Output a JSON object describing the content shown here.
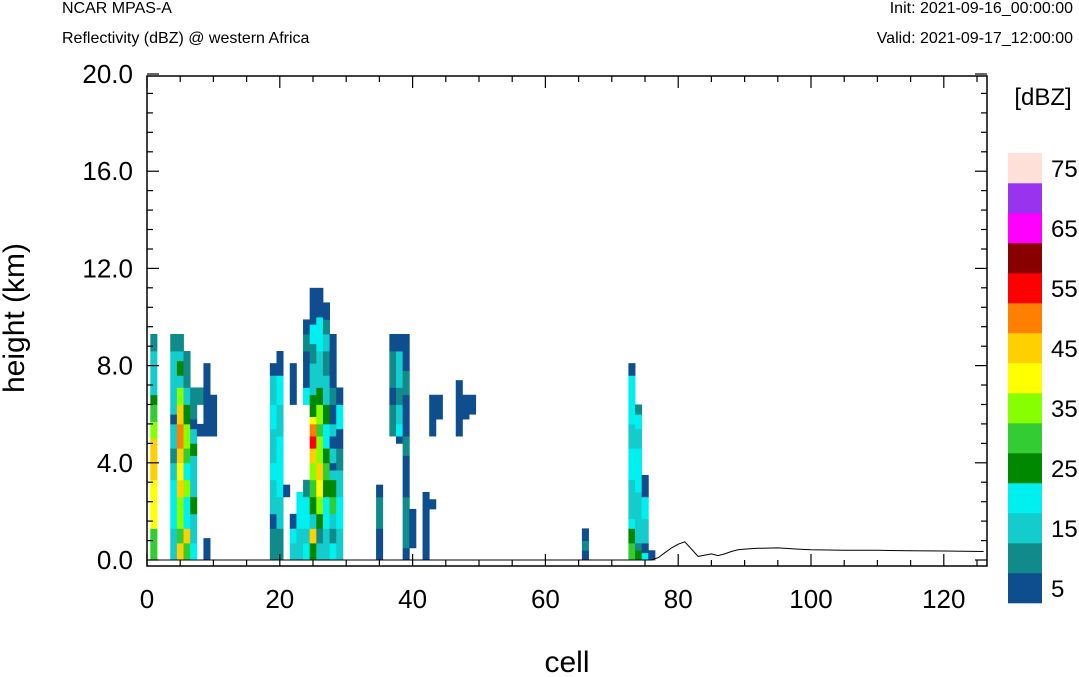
{
  "header": {
    "model": "NCAR MPAS-A",
    "subtitle": "Reflectivity (dBZ) @ western Africa",
    "init": "Init: 2021-09-16_00:00:00",
    "valid": "Valid: 2021-09-17_12:00:00"
  },
  "chart_data": {
    "type": "heatmap",
    "title": "Reflectivity (dBZ) @ western Africa",
    "xlabel": "cell",
    "ylabel": "height (km)",
    "xlim": [
      0,
      126
    ],
    "ylim": [
      0,
      20
    ],
    "x_ticks": [
      0,
      20,
      40,
      60,
      80,
      100,
      120
    ],
    "x_tick_labels": [
      "0",
      "20",
      "40",
      "60",
      "80",
      "100",
      "120"
    ],
    "y_ticks": [
      0,
      4,
      8,
      12,
      16,
      20
    ],
    "y_tick_labels": [
      "0.0",
      "4.0",
      "8.0",
      "12.0",
      "16.0",
      "20.0"
    ],
    "grid": false,
    "colorbar": {
      "unit": "[dBZ]",
      "levels": [
        5,
        10,
        15,
        20,
        25,
        30,
        35,
        40,
        45,
        50,
        55,
        60,
        65,
        70,
        75
      ],
      "labels": [
        "5",
        "15",
        "25",
        "35",
        "45",
        "55",
        "65",
        "75"
      ],
      "colors": [
        "#0e4d8e",
        "#108a8a",
        "#14cccc",
        "#00f0f0",
        "#008800",
        "#33cc33",
        "#88ff00",
        "#ffff00",
        "#ffd000",
        "#ff8000",
        "#ff0000",
        "#880000",
        "#ff00ff",
        "#9933ee",
        "#ffe0d8"
      ]
    },
    "columns": [
      {
        "x": 1,
        "cells": [
          [
            0.0,
            1.3,
            30
          ],
          [
            1.3,
            3.3,
            40
          ],
          [
            3.3,
            5.0,
            45
          ],
          [
            5.0,
            5.7,
            35
          ],
          [
            5.7,
            6.4,
            30
          ],
          [
            6.4,
            6.8,
            25
          ],
          [
            6.8,
            8.6,
            15
          ],
          [
            8.6,
            9.3,
            10
          ]
        ]
      },
      {
        "x": 4,
        "cells": [
          [
            0.0,
            1.3,
            15
          ],
          [
            1.3,
            3.3,
            20
          ],
          [
            3.3,
            4.0,
            15
          ],
          [
            4.0,
            4.6,
            10
          ],
          [
            4.6,
            5.6,
            15
          ],
          [
            5.6,
            6.0,
            5
          ],
          [
            6.0,
            8.6,
            15
          ],
          [
            8.6,
            9.3,
            10
          ]
        ]
      },
      {
        "x": 5,
        "cells": [
          [
            0.0,
            0.7,
            45
          ],
          [
            0.7,
            1.3,
            30
          ],
          [
            1.3,
            2.6,
            35
          ],
          [
            2.6,
            3.3,
            45
          ],
          [
            3.3,
            4.0,
            40
          ],
          [
            4.0,
            4.6,
            45
          ],
          [
            4.6,
            5.6,
            50
          ],
          [
            5.6,
            6.4,
            45
          ],
          [
            6.4,
            7.1,
            35
          ],
          [
            7.1,
            7.6,
            15
          ],
          [
            7.6,
            8.2,
            25
          ],
          [
            8.2,
            8.6,
            15
          ],
          [
            8.6,
            9.3,
            10
          ]
        ]
      },
      {
        "x": 6,
        "cells": [
          [
            0.0,
            0.7,
            30
          ],
          [
            0.7,
            1.3,
            45
          ],
          [
            1.3,
            2.6,
            20
          ],
          [
            2.6,
            3.3,
            35
          ],
          [
            3.3,
            4.0,
            20
          ],
          [
            4.0,
            4.6,
            30
          ],
          [
            4.6,
            5.6,
            35
          ],
          [
            5.6,
            6.4,
            25
          ],
          [
            6.4,
            7.1,
            15
          ],
          [
            7.1,
            8.6,
            10
          ]
        ]
      },
      {
        "x": 7,
        "cells": [
          [
            0.0,
            0.7,
            20
          ],
          [
            0.7,
            1.9,
            15
          ],
          [
            1.9,
            2.6,
            25
          ],
          [
            2.6,
            4.3,
            15
          ],
          [
            4.3,
            4.8,
            25
          ],
          [
            4.8,
            5.4,
            15
          ],
          [
            5.4,
            5.8,
            5
          ],
          [
            5.8,
            7.1,
            10
          ]
        ]
      },
      {
        "x": 8,
        "cells": [
          [
            5.1,
            5.6,
            5
          ],
          [
            6.4,
            7.1,
            10
          ]
        ]
      },
      {
        "x": 9,
        "cells": [
          [
            0.0,
            0.9,
            5
          ],
          [
            5.1,
            8.1,
            5
          ]
        ]
      },
      {
        "x": 10,
        "cells": [
          [
            5.1,
            6.8,
            5
          ]
        ]
      },
      {
        "x": 19,
        "cells": [
          [
            0.0,
            1.3,
            10
          ],
          [
            1.3,
            1.9,
            5
          ],
          [
            1.9,
            3.3,
            15
          ],
          [
            3.3,
            4.0,
            20
          ],
          [
            4.0,
            5.4,
            15
          ],
          [
            5.4,
            6.4,
            20
          ],
          [
            6.4,
            7.6,
            15
          ],
          [
            7.6,
            8.1,
            5
          ]
        ]
      },
      {
        "x": 20,
        "cells": [
          [
            0.0,
            1.3,
            10
          ],
          [
            1.3,
            2.6,
            15
          ],
          [
            2.6,
            5.1,
            20
          ],
          [
            5.1,
            6.4,
            15
          ],
          [
            6.4,
            7.6,
            20
          ],
          [
            7.6,
            8.6,
            5
          ]
        ]
      },
      {
        "x": 21,
        "cells": [
          [
            2.6,
            3.1,
            5
          ]
        ]
      },
      {
        "x": 22,
        "cells": [
          [
            0.0,
            0.7,
            15
          ],
          [
            0.7,
            1.3,
            20
          ],
          [
            1.3,
            1.9,
            5
          ],
          [
            6.4,
            8.1,
            5
          ]
        ]
      },
      {
        "x": 23,
        "cells": [
          [
            0.0,
            1.3,
            15
          ],
          [
            1.3,
            2.8,
            20
          ]
        ]
      },
      {
        "x": 24,
        "cells": [
          [
            0.0,
            0.7,
            20
          ],
          [
            0.7,
            1.3,
            15
          ],
          [
            1.3,
            2.6,
            20
          ],
          [
            2.6,
            3.3,
            10
          ],
          [
            6.4,
            7.1,
            20
          ],
          [
            7.1,
            8.6,
            5
          ],
          [
            8.6,
            9.3,
            10
          ],
          [
            9.3,
            9.9,
            5
          ]
        ]
      },
      {
        "x": 25,
        "cells": [
          [
            0.0,
            0.7,
            25
          ],
          [
            0.7,
            1.3,
            45
          ],
          [
            1.3,
            1.9,
            15
          ],
          [
            1.9,
            2.6,
            25
          ],
          [
            2.6,
            3.3,
            30
          ],
          [
            3.3,
            4.0,
            35
          ],
          [
            4.0,
            4.6,
            45
          ],
          [
            4.6,
            5.1,
            55
          ],
          [
            5.1,
            5.6,
            50
          ],
          [
            5.6,
            5.9,
            40
          ],
          [
            5.9,
            6.8,
            25
          ],
          [
            6.8,
            8.1,
            15
          ],
          [
            8.1,
            8.9,
            10
          ],
          [
            8.9,
            9.7,
            20
          ],
          [
            9.7,
            11.2,
            5
          ]
        ]
      },
      {
        "x": 26,
        "cells": [
          [
            0.0,
            0.7,
            15
          ],
          [
            0.7,
            1.3,
            10
          ],
          [
            1.3,
            1.9,
            25
          ],
          [
            1.9,
            2.6,
            35
          ],
          [
            2.6,
            3.3,
            40
          ],
          [
            3.3,
            4.0,
            45
          ],
          [
            4.0,
            5.1,
            35
          ],
          [
            5.1,
            5.6,
            30
          ],
          [
            5.6,
            6.4,
            35
          ],
          [
            6.4,
            7.1,
            25
          ],
          [
            7.1,
            8.6,
            15
          ],
          [
            8.6,
            10.0,
            20
          ],
          [
            10.0,
            11.2,
            5
          ]
        ]
      },
      {
        "x": 27,
        "cells": [
          [
            0.0,
            1.3,
            15
          ],
          [
            1.3,
            2.6,
            20
          ],
          [
            2.6,
            3.3,
            25
          ],
          [
            3.3,
            4.0,
            30
          ],
          [
            4.0,
            4.6,
            25
          ],
          [
            4.6,
            5.6,
            20
          ],
          [
            5.6,
            6.4,
            25
          ],
          [
            6.4,
            7.6,
            15
          ],
          [
            7.6,
            8.6,
            10
          ],
          [
            8.6,
            9.3,
            15
          ],
          [
            9.3,
            9.9,
            10
          ],
          [
            9.9,
            10.6,
            5
          ]
        ]
      },
      {
        "x": 28,
        "cells": [
          [
            0.0,
            0.7,
            20
          ],
          [
            0.7,
            1.3,
            10
          ],
          [
            1.3,
            1.9,
            15
          ],
          [
            1.9,
            2.6,
            30
          ],
          [
            2.6,
            3.3,
            25
          ],
          [
            3.3,
            3.7,
            15
          ],
          [
            3.7,
            4.0,
            5
          ],
          [
            4.0,
            4.6,
            15
          ],
          [
            4.6,
            5.1,
            5
          ],
          [
            5.1,
            5.6,
            15
          ],
          [
            5.6,
            6.4,
            5
          ],
          [
            6.4,
            7.1,
            10
          ],
          [
            7.1,
            9.3,
            5
          ]
        ]
      },
      {
        "x": 29,
        "cells": [
          [
            0.0,
            1.3,
            15
          ],
          [
            1.3,
            2.6,
            20
          ],
          [
            2.6,
            3.7,
            15
          ],
          [
            3.7,
            4.6,
            10
          ],
          [
            4.6,
            5.4,
            5
          ],
          [
            5.4,
            6.4,
            20
          ],
          [
            6.4,
            7.1,
            5
          ]
        ]
      },
      {
        "x": 35,
        "cells": [
          [
            0.0,
            1.3,
            5
          ],
          [
            1.3,
            2.6,
            10
          ],
          [
            2.6,
            3.1,
            5
          ]
        ]
      },
      {
        "x": 37,
        "cells": [
          [
            5.1,
            6.4,
            10
          ],
          [
            6.4,
            7.1,
            5
          ],
          [
            7.1,
            8.6,
            10
          ],
          [
            8.6,
            9.3,
            5
          ]
        ]
      },
      {
        "x": 38,
        "cells": [
          [
            4.8,
            5.1,
            5
          ],
          [
            5.1,
            5.6,
            20
          ],
          [
            5.6,
            6.4,
            15
          ],
          [
            6.4,
            7.1,
            10
          ],
          [
            7.1,
            8.6,
            15
          ],
          [
            8.6,
            9.3,
            5
          ]
        ]
      },
      {
        "x": 39,
        "cells": [
          [
            0.0,
            0.5,
            5
          ],
          [
            0.5,
            2.6,
            10
          ],
          [
            2.6,
            4.3,
            5
          ],
          [
            4.3,
            5.1,
            10
          ],
          [
            5.1,
            6.8,
            5
          ],
          [
            6.8,
            7.8,
            10
          ],
          [
            7.8,
            9.3,
            5
          ]
        ]
      },
      {
        "x": 40,
        "cells": [
          [
            0.5,
            2.1,
            5
          ]
        ]
      },
      {
        "x": 42,
        "cells": [
          [
            0.0,
            2.8,
            5
          ]
        ]
      },
      {
        "x": 43,
        "cells": [
          [
            2.1,
            2.5,
            5
          ],
          [
            5.1,
            6.8,
            5
          ]
        ]
      },
      {
        "x": 44,
        "cells": [
          [
            5.8,
            6.8,
            5
          ]
        ]
      },
      {
        "x": 47,
        "cells": [
          [
            5.1,
            7.4,
            5
          ]
        ]
      },
      {
        "x": 48,
        "cells": [
          [
            5.8,
            6.8,
            5
          ]
        ]
      },
      {
        "x": 49,
        "cells": [
          [
            6.0,
            6.8,
            5
          ]
        ]
      },
      {
        "x": 66,
        "cells": [
          [
            0.0,
            0.4,
            5
          ],
          [
            0.4,
            0.8,
            10
          ],
          [
            0.8,
            1.3,
            5
          ]
        ]
      },
      {
        "x": 73,
        "cells": [
          [
            0.0,
            0.7,
            30
          ],
          [
            0.7,
            1.3,
            25
          ],
          [
            1.3,
            1.7,
            20
          ],
          [
            1.7,
            3.3,
            15
          ],
          [
            3.3,
            4.6,
            20
          ],
          [
            4.6,
            5.6,
            15
          ],
          [
            5.6,
            7.6,
            20
          ],
          [
            7.6,
            8.1,
            5
          ]
        ]
      },
      {
        "x": 74,
        "cells": [
          [
            0.0,
            0.4,
            25
          ],
          [
            0.4,
            0.7,
            10
          ],
          [
            0.7,
            2.8,
            15
          ],
          [
            2.8,
            4.6,
            20
          ],
          [
            4.6,
            5.4,
            15
          ],
          [
            5.4,
            6.0,
            20
          ],
          [
            6.0,
            6.4,
            10
          ]
        ]
      },
      {
        "x": 75,
        "cells": [
          [
            0.0,
            0.3,
            20
          ],
          [
            0.3,
            0.7,
            5
          ],
          [
            0.7,
            1.7,
            15
          ],
          [
            1.7,
            2.6,
            20
          ],
          [
            2.6,
            3.5,
            5
          ]
        ]
      },
      {
        "x": 76,
        "cells": [
          [
            0.0,
            0.4,
            5
          ]
        ]
      }
    ],
    "terrain": {
      "x": [
        0,
        76,
        77,
        78,
        79,
        80,
        81,
        82,
        83,
        84,
        85,
        86,
        87,
        88,
        89,
        90,
        92,
        95,
        98,
        100,
        105,
        110,
        115,
        120,
        126
      ],
      "y": [
        0.0,
        0.0,
        0.1,
        0.3,
        0.5,
        0.65,
        0.75,
        0.45,
        0.15,
        0.2,
        0.25,
        0.18,
        0.25,
        0.35,
        0.42,
        0.45,
        0.48,
        0.5,
        0.45,
        0.42,
        0.4,
        0.4,
        0.38,
        0.37,
        0.35
      ]
    }
  }
}
